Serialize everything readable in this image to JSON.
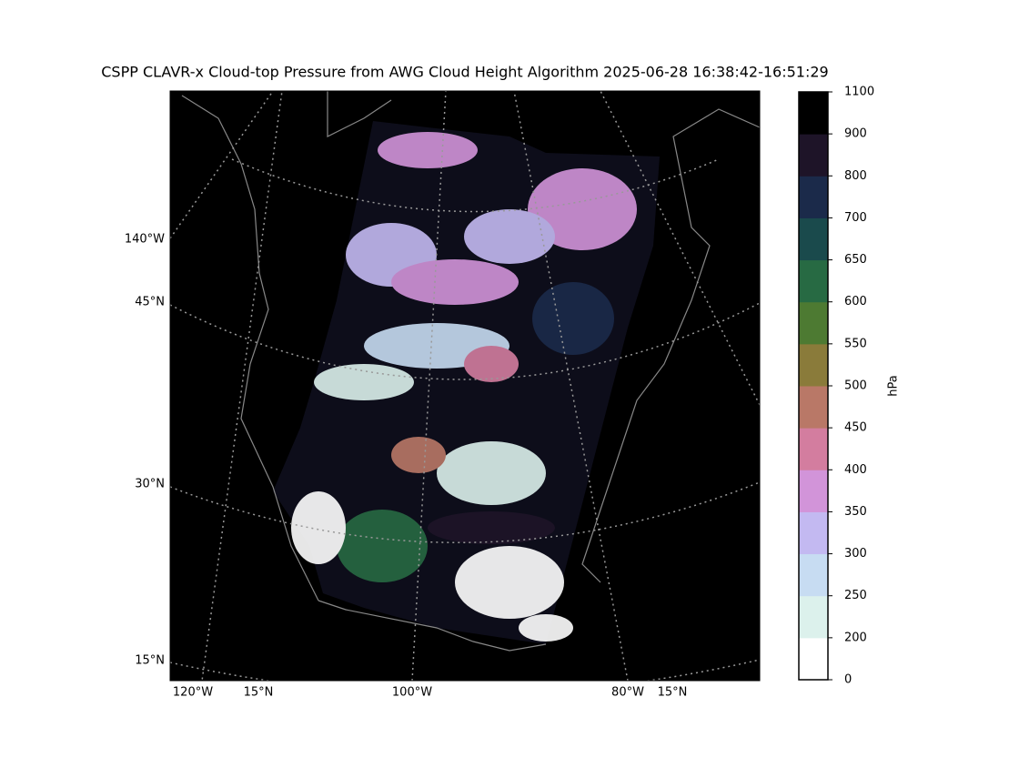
{
  "title": "CSPP CLAVR-x Cloud-top Pressure from AWG Cloud Height Algorithm 2025-06-28 16:38:42-16:51:29",
  "map": {
    "left_labels": [
      "140°W",
      "45°N",
      "30°N",
      "15°N"
    ],
    "bottom_labels": [
      "120°W",
      "15°N",
      "100°W",
      "80°W",
      "15°N"
    ]
  },
  "colorbar": {
    "label": "hPa",
    "boundaries": [
      0,
      200,
      250,
      300,
      350,
      400,
      450,
      500,
      550,
      600,
      650,
      700,
      800,
      900,
      1100
    ],
    "colors": [
      "#ffffff",
      "#dcf1ec",
      "#c7dcf2",
      "#c3b9f1",
      "#d294d9",
      "#d37d9f",
      "#b97867",
      "#8a7b3a",
      "#4d7a32",
      "#276a43",
      "#1a4a4c",
      "#1b2a4a",
      "#1e1428",
      "#000000"
    ]
  }
}
